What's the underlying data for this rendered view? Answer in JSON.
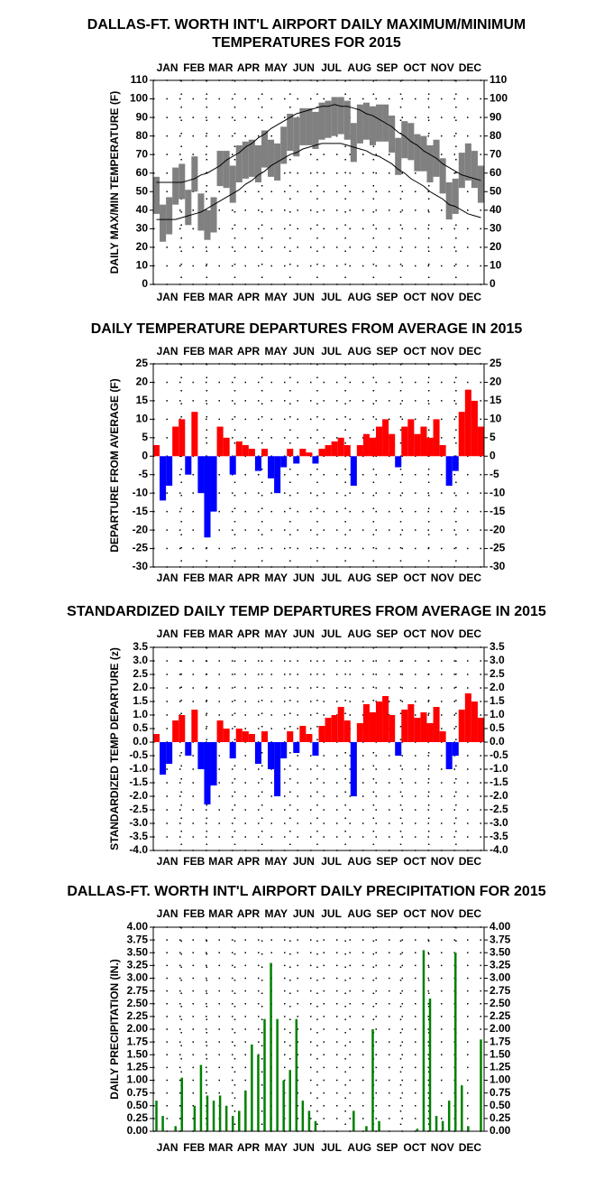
{
  "chart_data": [
    {
      "type": "range",
      "title": [
        "DALLAS-FT. WORTH INT'L AIRPORT DAILY MAXIMUM/MINIMUM",
        "TEMPERATURES FOR 2015"
      ],
      "ylabel": "DAILY MAX/MIN TEMPERATURE (F)",
      "months": [
        "JAN",
        "FEB",
        "MAR",
        "APR",
        "MAY",
        "JUN",
        "JUL",
        "AUG",
        "SEP",
        "OCT",
        "NOV",
        "DEC"
      ],
      "ylim": [
        0,
        110
      ],
      "yticks": [
        0,
        10,
        20,
        30,
        40,
        50,
        60,
        70,
        80,
        90,
        100,
        110
      ],
      "grid": true,
      "color": "#808080",
      "line_color": "#000000",
      "max": [
        58,
        43,
        47,
        63,
        65,
        51,
        69,
        49,
        40,
        47,
        72,
        72,
        64,
        75,
        77,
        78,
        75,
        83,
        78,
        76,
        85,
        92,
        90,
        95,
        95,
        93,
        98,
        99,
        101,
        101,
        99,
        87,
        97,
        98,
        96,
        97,
        97,
        91,
        79,
        88,
        87,
        81,
        80,
        75,
        78,
        68,
        55,
        57,
        71,
        76,
        72,
        64
      ],
      "min": [
        38,
        23,
        27,
        43,
        46,
        32,
        50,
        29,
        24,
        28,
        53,
        52,
        44,
        55,
        57,
        58,
        55,
        63,
        58,
        56,
        65,
        72,
        69,
        75,
        75,
        73,
        78,
        79,
        80,
        81,
        78,
        66,
        76,
        78,
        75,
        77,
        77,
        71,
        59,
        68,
        67,
        61,
        61,
        55,
        58,
        49,
        35,
        38,
        52,
        56,
        52,
        44
      ],
      "normal_max": [
        55,
        55,
        55,
        55,
        55,
        56,
        57,
        59,
        60,
        62,
        64,
        67,
        69,
        71,
        74,
        76,
        79,
        81,
        84,
        86,
        88,
        90,
        92,
        93,
        94,
        95,
        96,
        96,
        97,
        96,
        96,
        95,
        94,
        92,
        91,
        89,
        87,
        85,
        82,
        80,
        77,
        75,
        72,
        70,
        68,
        65,
        63,
        61,
        59,
        58,
        57,
        56
      ],
      "normal_min": [
        35,
        35,
        35,
        35,
        36,
        37,
        38,
        39,
        41,
        43,
        45,
        47,
        49,
        51,
        54,
        56,
        59,
        61,
        64,
        66,
        68,
        70,
        71,
        73,
        74,
        75,
        76,
        76,
        76,
        76,
        75,
        74,
        73,
        72,
        70,
        69,
        67,
        65,
        62,
        60,
        57,
        55,
        53,
        50,
        48,
        46,
        43,
        42,
        40,
        38,
        37,
        36
      ]
    },
    {
      "type": "bar",
      "title": [
        "DAILY TEMPERATURE DEPARTURES FROM AVERAGE IN 2015"
      ],
      "ylabel": "DEPARTURE FROM AVERAGE (F)",
      "months": [
        "JAN",
        "FEB",
        "MAR",
        "APR",
        "MAY",
        "JUN",
        "JUL",
        "AUG",
        "SEP",
        "OCT",
        "NOV",
        "DEC"
      ],
      "ylim": [
        -30,
        25
      ],
      "yticks": [
        -30,
        -25,
        -20,
        -15,
        -10,
        -5,
        0,
        5,
        10,
        15,
        20,
        25
      ],
      "grid": true,
      "pos_color": "#ff0000",
      "neg_color": "#0000ff",
      "values": [
        3,
        -12,
        -8,
        8,
        10,
        -5,
        12,
        -10,
        -22,
        -15,
        8,
        5,
        -5,
        4,
        3,
        2,
        -4,
        2,
        -6,
        -10,
        -3,
        2,
        -2,
        2,
        1,
        -2,
        2,
        3,
        4,
        5,
        3,
        -8,
        3,
        6,
        5,
        8,
        10,
        6,
        -3,
        8,
        10,
        6,
        8,
        5,
        10,
        3,
        -8,
        -4,
        12,
        18,
        15,
        8
      ]
    },
    {
      "type": "bar",
      "title": [
        "STANDARDIZED DAILY TEMP DEPARTURES FROM AVERAGE IN 2015"
      ],
      "ylabel": "STANDARDIZED TEMP DEPARTURE (z)",
      "months": [
        "JAN",
        "FEB",
        "MAR",
        "APR",
        "MAY",
        "JUN",
        "JUL",
        "AUG",
        "SEP",
        "OCT",
        "NOV",
        "DEC"
      ],
      "ylim": [
        -4,
        3.5
      ],
      "yticks": [
        {
          "value": -4,
          "label": "-4.0"
        },
        -3.5,
        {
          "value": -3,
          "label": "-3.0"
        },
        -2.5,
        {
          "value": -2,
          "label": "-2.0"
        },
        -1.5,
        {
          "value": -1,
          "label": "-1.0"
        },
        -0.5,
        {
          "value": 0,
          "label": "0.0"
        },
        0.5,
        {
          "value": 1,
          "label": "1.0"
        },
        1.5,
        {
          "value": 2,
          "label": "2.0"
        },
        2.5,
        {
          "value": 3,
          "label": "3.0"
        },
        3.5
      ],
      "grid": true,
      "pos_color": "#ff0000",
      "neg_color": "#0000ff",
      "values": [
        0.3,
        -1.2,
        -0.8,
        0.8,
        1.0,
        -0.5,
        1.2,
        -1.0,
        -2.3,
        -1.6,
        0.8,
        0.5,
        -0.6,
        0.5,
        0.4,
        0.3,
        -0.8,
        0.4,
        -1.0,
        -2.0,
        -0.6,
        0.4,
        -0.4,
        0.6,
        0.3,
        -0.5,
        0.6,
        0.9,
        1.0,
        1.3,
        0.8,
        -2.0,
        0.7,
        1.4,
        1.1,
        1.5,
        1.7,
        1.0,
        -0.5,
        1.2,
        1.4,
        0.9,
        1.1,
        0.7,
        1.3,
        0.4,
        -1.0,
        -0.5,
        1.2,
        1.8,
        1.5,
        0.9
      ]
    },
    {
      "type": "bar",
      "title": [
        "DALLAS-FT. WORTH INT'L AIRPORT DAILY PRECIPITATION FOR 2015"
      ],
      "ylabel": "DAILY PRECIPITATION (IN.)",
      "months": [
        "JAN",
        "FEB",
        "MAR",
        "APR",
        "MAY",
        "JUN",
        "JUL",
        "AUG",
        "SEP",
        "OCT",
        "NOV",
        "DEC"
      ],
      "ylim": [
        0,
        4
      ],
      "yticks": [
        {
          "value": 0,
          "label": "0.00"
        },
        0.25,
        {
          "value": 0.5,
          "label": "0.50"
        },
        0.75,
        {
          "value": 1,
          "label": "1.00"
        },
        1.25,
        {
          "value": 1.5,
          "label": "1.50"
        },
        1.75,
        {
          "value": 2,
          "label": "2.00"
        },
        2.25,
        {
          "value": 2.5,
          "label": "2.50"
        },
        2.75,
        {
          "value": 3,
          "label": "3.00"
        },
        3.25,
        {
          "value": 3.5,
          "label": "3.50"
        },
        3.75,
        {
          "value": 4,
          "label": "4.00"
        }
      ],
      "grid": true,
      "color": "#008000",
      "values": [
        0.6,
        0.3,
        0,
        0.1,
        1.05,
        0,
        0.5,
        1.3,
        0.7,
        0.6,
        0.7,
        0.5,
        0.3,
        0.4,
        0.8,
        1.7,
        1.5,
        2.2,
        3.3,
        2.2,
        1.0,
        1.2,
        2.2,
        0.6,
        0.4,
        0.2,
        0,
        0,
        0,
        0,
        0,
        0.4,
        0,
        0.1,
        2.0,
        0.2,
        0,
        0,
        0,
        0,
        0,
        0.05,
        3.55,
        2.6,
        0.3,
        0.2,
        0.6,
        3.5,
        0.9,
        0.1,
        0,
        1.8
      ]
    }
  ]
}
